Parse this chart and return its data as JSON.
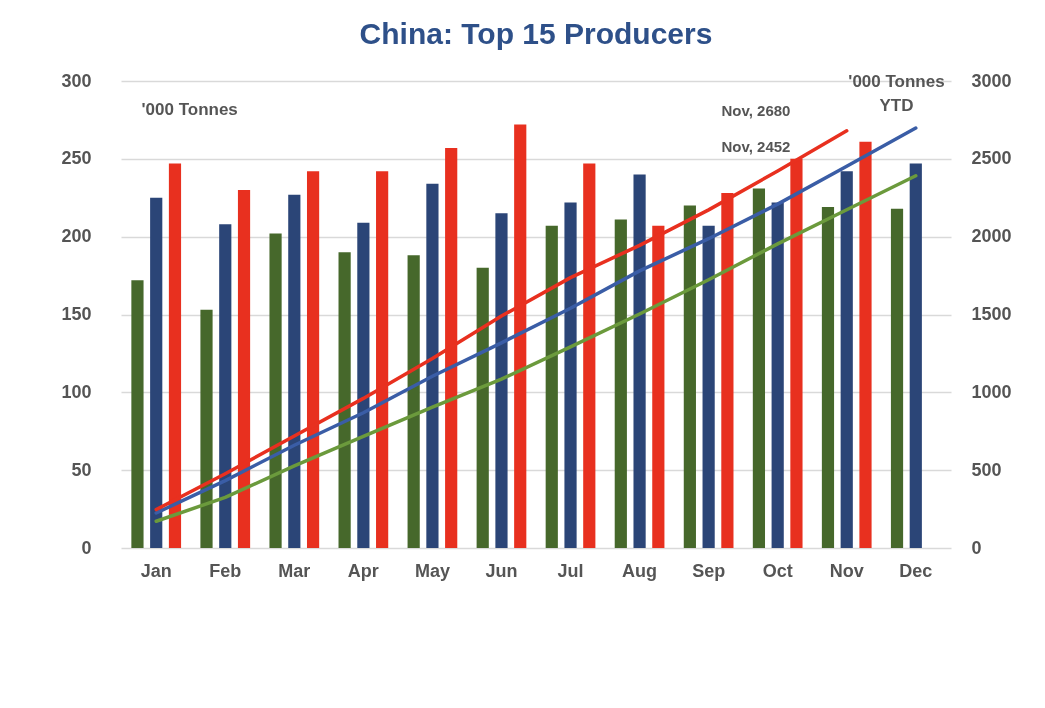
{
  "chart_data": {
    "type": "bar",
    "title": "China: Top 15 Producers",
    "ylabel": "'000 Tonnes",
    "y2label": "'000 Tonnes YTD",
    "categories": [
      "Jan",
      "Feb",
      "Mar",
      "Apr",
      "May",
      "Jun",
      "Jul",
      "Aug",
      "Sep",
      "Oct",
      "Nov",
      "Dec"
    ],
    "series": [
      {
        "color": "#46682b",
        "values": [
          172,
          153,
          202,
          190,
          188,
          180,
          207,
          211,
          220,
          231,
          219,
          218
        ]
      },
      {
        "color": "#2b4577",
        "values": [
          225,
          208,
          227,
          209,
          234,
          215,
          222,
          240,
          207,
          222,
          242,
          247
        ]
      },
      {
        "color": "#e8301f",
        "values": [
          247,
          230,
          242,
          242,
          257,
          272,
          247,
          207,
          228,
          250,
          261,
          null
        ]
      },
      {
        "type": "line",
        "axis": "y2",
        "color": "#6b9a3c",
        "values": [
          172,
          325,
          527,
          717,
          905,
          1085,
          1292,
          1503,
          1723,
          1954,
          2173,
          2391
        ]
      },
      {
        "type": "line",
        "axis": "y2",
        "color": "#3a5da6",
        "values": [
          225,
          433,
          660,
          869,
          1103,
          1318,
          1540,
          1780,
          1987,
          2209,
          2452,
          2698
        ]
      },
      {
        "type": "line",
        "axis": "y2",
        "color": "#e8301f",
        "values": [
          247,
          477,
          719,
          961,
          1218,
          1490,
          1737,
          1944,
          2172,
          2422,
          2680,
          null
        ]
      }
    ],
    "ylim": [
      0,
      300
    ],
    "yticks": [
      0,
      50,
      100,
      150,
      200,
      250,
      300
    ],
    "y2lim": [
      0,
      3000
    ],
    "y2ticks": [
      0,
      500,
      1000,
      1500,
      2000,
      2500,
      3000
    ],
    "grid": "y",
    "annotations": [
      "Nov, 2680",
      "Nov, 2452"
    ]
  }
}
